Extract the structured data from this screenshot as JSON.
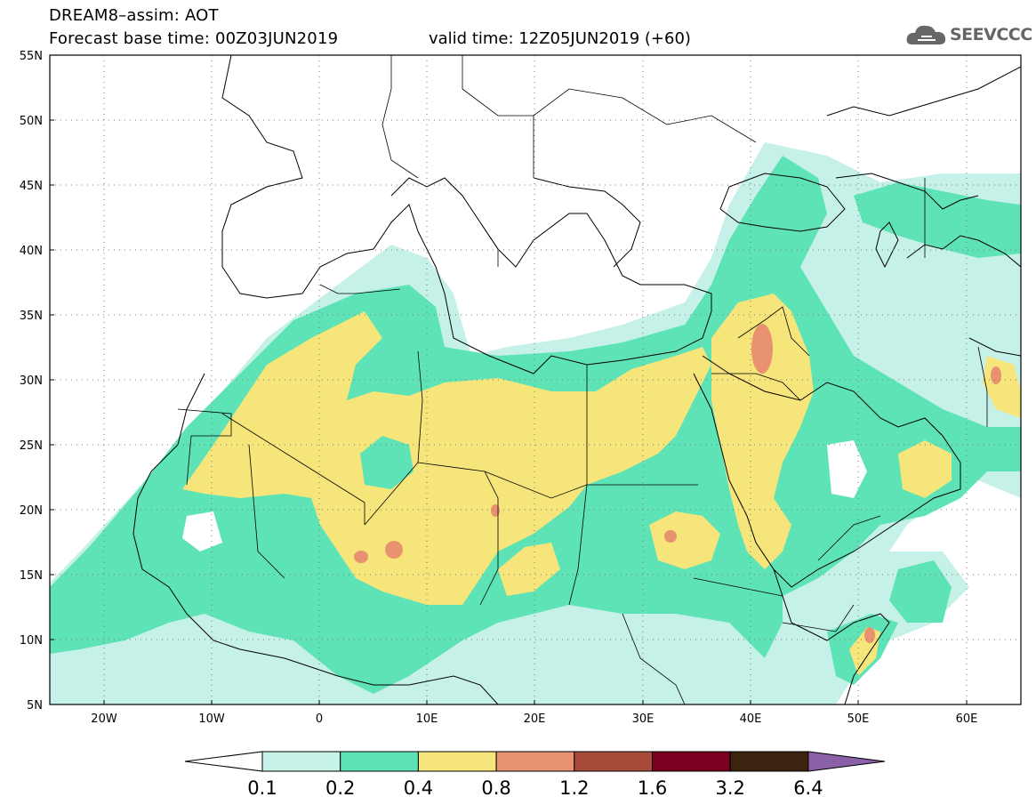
{
  "header": {
    "title_line1": "DREAM8–assim: AOT",
    "title_line2": "Forecast base time: 00Z03JUN2019",
    "valid_time": "valid time: 12Z05JUN2019 (+60)",
    "logo_text": "SEEVCCC",
    "logo_icon": "cloud-icon"
  },
  "map": {
    "lon_range": [
      -25,
      65
    ],
    "lat_range": [
      5,
      55
    ],
    "lat_ticks": [
      "55N",
      "50N",
      "45N",
      "40N",
      "35N",
      "30N",
      "25N",
      "20N",
      "15N",
      "10N",
      "5N"
    ],
    "lon_ticks": [
      "20W",
      "10W",
      "0",
      "10E",
      "20E",
      "30E",
      "40E",
      "50E",
      "60E"
    ],
    "grid": "dotted"
  },
  "colorbar": {
    "labels": [
      "0.1",
      "0.2",
      "0.4",
      "0.8",
      "1.2",
      "1.6",
      "3.2",
      "6.4"
    ],
    "colors": [
      "#ffffff",
      "#c6f1e8",
      "#5ee3b6",
      "#f5e57a",
      "#e99270",
      "#a84a3a",
      "#7a0020",
      "#3a2410",
      "#8a60a8"
    ]
  }
}
